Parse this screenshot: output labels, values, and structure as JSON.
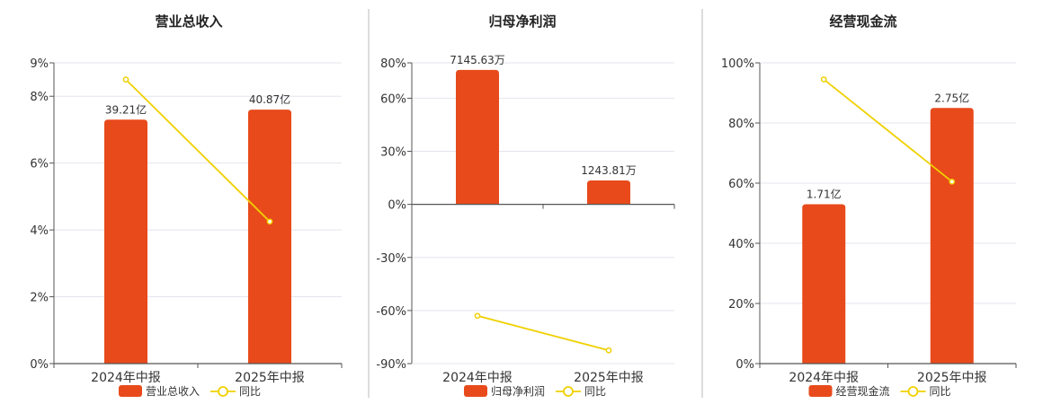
{
  "colors": {
    "bar": "#e84a1b",
    "line": "#f0d000",
    "grid": "#e4e4ee",
    "axis": "#555555",
    "divider": "#bbbbbb"
  },
  "chart_data": [
    {
      "type": "bar",
      "title": "营业总收入",
      "categories": [
        "2024年中报",
        "2025年中报"
      ],
      "series": [
        {
          "name": "营业总收入",
          "type": "bar",
          "values": [
            7.3,
            7.6
          ],
          "labels": [
            "39.21亿",
            "40.87亿"
          ]
        },
        {
          "name": "同比",
          "type": "line",
          "values": [
            8.5,
            4.25
          ]
        }
      ],
      "ylim": [
        0,
        9
      ],
      "yticks": [
        0,
        2,
        4,
        6,
        8,
        9
      ],
      "ytick_labels": [
        "0%",
        "2%",
        "4%",
        "6%",
        "8%",
        "9%"
      ],
      "grid": true,
      "legend": "bottom"
    },
    {
      "type": "bar",
      "title": "归母净利润",
      "categories": [
        "2024年中报",
        "2025年中报"
      ],
      "series": [
        {
          "name": "归母净利润",
          "type": "bar",
          "values": [
            76,
            13.5
          ],
          "labels": [
            "7145.63万",
            "1243.81万"
          ]
        },
        {
          "name": "同比",
          "type": "line",
          "values": [
            -63,
            -82.5
          ]
        }
      ],
      "ylim": [
        -90,
        80
      ],
      "yticks": [
        -90,
        -60,
        -30,
        0,
        30,
        60,
        80
      ],
      "ytick_labels": [
        "-90%",
        "-60%",
        "-30%",
        "0%",
        "30%",
        "60%",
        "80%"
      ],
      "grid": true,
      "legend": "bottom"
    },
    {
      "type": "bar",
      "title": "经营现金流",
      "categories": [
        "2024年中报",
        "2025年中报"
      ],
      "series": [
        {
          "name": "经营现金流",
          "type": "bar",
          "values": [
            53,
            85
          ],
          "labels": [
            "1.71亿",
            "2.75亿"
          ]
        },
        {
          "name": "同比",
          "type": "line",
          "values": [
            94.5,
            60.5
          ]
        }
      ],
      "ylim": [
        0,
        100
      ],
      "yticks": [
        0,
        20,
        40,
        60,
        80,
        100
      ],
      "ytick_labels": [
        "0%",
        "20%",
        "40%",
        "60%",
        "80%",
        "100%"
      ],
      "grid": true,
      "legend": "bottom"
    }
  ]
}
